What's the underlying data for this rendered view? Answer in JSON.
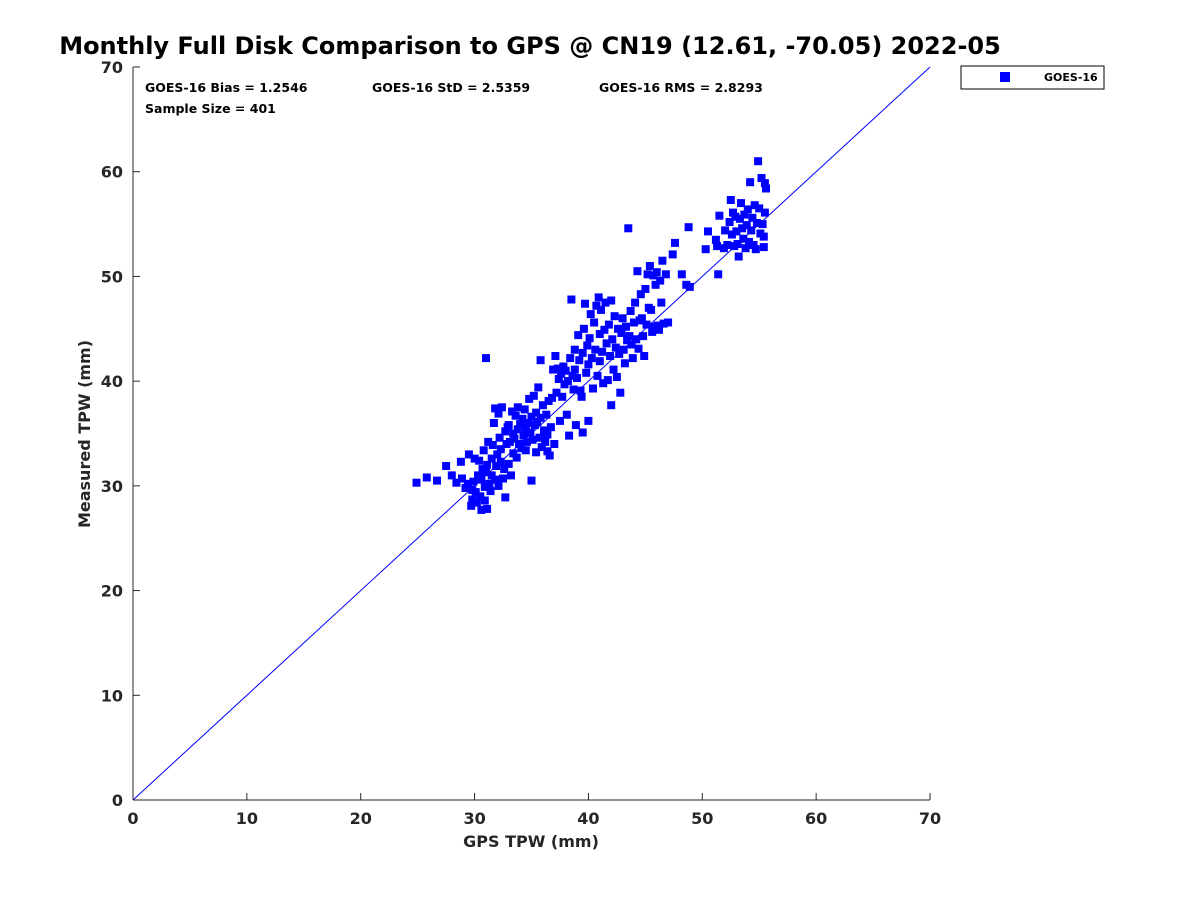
{
  "colors": {
    "series": "#0000ff",
    "line": "#0000ff",
    "axis": "#262626"
  },
  "stats": {
    "bias": "GOES-16 Bias = 1.2546",
    "std": "GOES-16 StD = 2.5359",
    "rms": "GOES-16 RMS = 2.8293",
    "sample": "Sample Size = 401"
  },
  "chart_data": {
    "type": "scatter",
    "title": "Monthly Full Disk Comparison to GPS @ CN19 (12.61, -70.05) 2022-05",
    "xlabel": "GPS TPW (mm)",
    "ylabel": "Measured TPW (mm)",
    "xlim": [
      0,
      70
    ],
    "ylim": [
      0,
      70
    ],
    "xticks": [
      "0",
      "10",
      "20",
      "30",
      "40",
      "50",
      "60",
      "70"
    ],
    "yticks": [
      "0",
      "10",
      "20",
      "30",
      "40",
      "50",
      "60",
      "70"
    ],
    "grid": false,
    "legend": "top-right outside",
    "reference_line": {
      "x": [
        0,
        70
      ],
      "y": [
        0,
        70
      ]
    },
    "series": [
      {
        "name": "GOES-16",
        "marker": "square",
        "points": [
          [
            24.9,
            30.3
          ],
          [
            25.8,
            30.8
          ],
          [
            26.7,
            30.5
          ],
          [
            27.5,
            31.9
          ],
          [
            28.0,
            31.0
          ],
          [
            28.4,
            30.3
          ],
          [
            28.8,
            32.3
          ],
          [
            28.9,
            30.7
          ],
          [
            29.2,
            29.8
          ],
          [
            29.4,
            30.2
          ],
          [
            29.5,
            33.0
          ],
          [
            29.7,
            28.1
          ],
          [
            29.8,
            28.7
          ],
          [
            29.8,
            29.6
          ],
          [
            29.9,
            30.4
          ],
          [
            30.0,
            32.6
          ],
          [
            30.1,
            29.4
          ],
          [
            30.2,
            28.4
          ],
          [
            30.3,
            31.0
          ],
          [
            30.4,
            32.4
          ],
          [
            30.5,
            29.0
          ],
          [
            30.6,
            27.7
          ],
          [
            30.6,
            30.6
          ],
          [
            30.7,
            31.6
          ],
          [
            30.8,
            33.4
          ],
          [
            30.9,
            28.6
          ],
          [
            30.9,
            29.9
          ],
          [
            31.0,
            31.3
          ],
          [
            31.0,
            42.2
          ],
          [
            31.1,
            32.0
          ],
          [
            31.1,
            27.8
          ],
          [
            31.2,
            34.2
          ],
          [
            31.3,
            30.2
          ],
          [
            31.4,
            29.5
          ],
          [
            31.5,
            32.6
          ],
          [
            31.5,
            31.0
          ],
          [
            31.6,
            33.9
          ],
          [
            31.7,
            36.0
          ],
          [
            31.8,
            30.6
          ],
          [
            31.8,
            37.4
          ],
          [
            31.9,
            31.9
          ],
          [
            32.0,
            33.0
          ],
          [
            32.1,
            36.9
          ],
          [
            32.1,
            30.0
          ],
          [
            32.2,
            34.6
          ],
          [
            32.3,
            32.3
          ],
          [
            32.3,
            33.5
          ],
          [
            32.4,
            37.5
          ],
          [
            32.5,
            30.7
          ],
          [
            32.6,
            31.6
          ],
          [
            32.7,
            35.2
          ],
          [
            32.7,
            28.9
          ],
          [
            32.8,
            34.0
          ],
          [
            32.9,
            35.6
          ],
          [
            33.0,
            32.1
          ],
          [
            33.0,
            35.8
          ],
          [
            33.1,
            34.2
          ],
          [
            33.2,
            31.0
          ],
          [
            33.3,
            37.1
          ],
          [
            33.4,
            33.1
          ],
          [
            33.4,
            35.0
          ],
          [
            33.5,
            34.5
          ],
          [
            33.6,
            36.7
          ],
          [
            33.7,
            32.7
          ],
          [
            33.8,
            35.4
          ],
          [
            33.8,
            37.5
          ],
          [
            33.9,
            34.0
          ],
          [
            34.0,
            35.9
          ],
          [
            34.1,
            33.6
          ],
          [
            34.2,
            36.4
          ],
          [
            34.3,
            34.8
          ],
          [
            34.4,
            37.3
          ],
          [
            34.5,
            35.5
          ],
          [
            34.5,
            33.4
          ],
          [
            34.6,
            34.2
          ],
          [
            34.7,
            36.0
          ],
          [
            34.8,
            38.3
          ],
          [
            34.9,
            35.1
          ],
          [
            35.0,
            30.5
          ],
          [
            35.0,
            36.6
          ],
          [
            35.1,
            34.4
          ],
          [
            35.2,
            38.6
          ],
          [
            35.3,
            35.8
          ],
          [
            35.4,
            33.2
          ],
          [
            35.4,
            37.0
          ],
          [
            35.5,
            36.1
          ],
          [
            35.6,
            39.4
          ],
          [
            35.7,
            34.6
          ],
          [
            35.8,
            42.0
          ],
          [
            35.8,
            36.5
          ],
          [
            35.9,
            33.7
          ],
          [
            36.0,
            37.7
          ],
          [
            36.1,
            35.3
          ],
          [
            36.2,
            34.2
          ],
          [
            36.3,
            36.8
          ],
          [
            36.4,
            33.3
          ],
          [
            36.4,
            34.9
          ],
          [
            36.5,
            38.1
          ],
          [
            36.6,
            32.9
          ],
          [
            36.7,
            35.6
          ],
          [
            36.8,
            38.4
          ],
          [
            36.9,
            41.1
          ],
          [
            37.0,
            34.0
          ],
          [
            37.1,
            42.4
          ],
          [
            37.2,
            38.9
          ],
          [
            37.3,
            41.2
          ],
          [
            37.4,
            40.2
          ],
          [
            37.5,
            36.2
          ],
          [
            37.6,
            40.7
          ],
          [
            37.7,
            38.5
          ],
          [
            37.8,
            41.4
          ],
          [
            37.9,
            39.7
          ],
          [
            38.0,
            41.0
          ],
          [
            38.1,
            36.8
          ],
          [
            38.2,
            40.0
          ],
          [
            38.3,
            34.8
          ],
          [
            38.4,
            42.2
          ],
          [
            38.5,
            47.8
          ],
          [
            38.6,
            40.5
          ],
          [
            38.7,
            39.2
          ],
          [
            38.8,
            43.0
          ],
          [
            38.8,
            41.1
          ],
          [
            38.9,
            35.8
          ],
          [
            39.0,
            40.3
          ],
          [
            39.1,
            44.4
          ],
          [
            39.2,
            42.0
          ],
          [
            39.3,
            39.1
          ],
          [
            39.4,
            38.5
          ],
          [
            39.5,
            42.7
          ],
          [
            39.5,
            35.1
          ],
          [
            39.6,
            45.0
          ],
          [
            39.7,
            47.4
          ],
          [
            39.8,
            40.8
          ],
          [
            39.9,
            43.4
          ],
          [
            40.0,
            41.6
          ],
          [
            40.0,
            36.2
          ],
          [
            40.1,
            44.1
          ],
          [
            40.2,
            46.4
          ],
          [
            40.3,
            42.2
          ],
          [
            40.4,
            39.3
          ],
          [
            40.5,
            45.6
          ],
          [
            40.6,
            43.0
          ],
          [
            40.7,
            47.2
          ],
          [
            40.8,
            40.5
          ],
          [
            40.9,
            48.0
          ],
          [
            41.0,
            44.5
          ],
          [
            41.0,
            41.9
          ],
          [
            41.1,
            46.8
          ],
          [
            41.2,
            42.8
          ],
          [
            41.3,
            39.8
          ],
          [
            41.4,
            44.9
          ],
          [
            41.5,
            47.5
          ],
          [
            41.6,
            43.6
          ],
          [
            41.7,
            40.1
          ],
          [
            41.8,
            45.4
          ],
          [
            41.9,
            42.4
          ],
          [
            42.0,
            47.7
          ],
          [
            42.0,
            37.7
          ],
          [
            42.1,
            44.0
          ],
          [
            42.2,
            41.1
          ],
          [
            42.3,
            46.2
          ],
          [
            42.4,
            43.2
          ],
          [
            42.5,
            40.4
          ],
          [
            42.6,
            45.0
          ],
          [
            42.7,
            42.6
          ],
          [
            42.8,
            38.9
          ],
          [
            42.9,
            44.6
          ],
          [
            43.0,
            46.0
          ],
          [
            43.1,
            43.0
          ],
          [
            43.2,
            41.7
          ],
          [
            43.3,
            45.2
          ],
          [
            43.4,
            43.9
          ],
          [
            43.5,
            54.6
          ],
          [
            43.6,
            44.3
          ],
          [
            43.7,
            46.7
          ],
          [
            43.8,
            43.5
          ],
          [
            43.9,
            42.2
          ],
          [
            44.0,
            45.6
          ],
          [
            44.1,
            47.5
          ],
          [
            44.2,
            44.0
          ],
          [
            44.3,
            50.5
          ],
          [
            44.4,
            43.1
          ],
          [
            44.5,
            45.8
          ],
          [
            44.6,
            48.3
          ],
          [
            44.7,
            46.0
          ],
          [
            44.8,
            44.3
          ],
          [
            44.9,
            42.4
          ],
          [
            45.0,
            48.8
          ],
          [
            45.1,
            45.4
          ],
          [
            45.2,
            50.2
          ],
          [
            45.3,
            47.0
          ],
          [
            45.4,
            51.0
          ],
          [
            45.5,
            46.8
          ],
          [
            45.6,
            44.7
          ],
          [
            45.7,
            50.1
          ],
          [
            45.8,
            45.2
          ],
          [
            45.9,
            49.2
          ],
          [
            46.0,
            50.4
          ],
          [
            46.1,
            45.3
          ],
          [
            46.2,
            44.9
          ],
          [
            46.3,
            49.6
          ],
          [
            46.4,
            47.5
          ],
          [
            46.5,
            51.5
          ],
          [
            46.6,
            45.5
          ],
          [
            46.8,
            50.2
          ],
          [
            47.0,
            45.6
          ],
          [
            47.4,
            52.1
          ],
          [
            47.6,
            53.2
          ],
          [
            48.2,
            50.2
          ],
          [
            48.6,
            49.2
          ],
          [
            48.8,
            54.7
          ],
          [
            48.9,
            49.0
          ],
          [
            50.3,
            52.6
          ],
          [
            50.5,
            54.3
          ],
          [
            51.2,
            53.5
          ],
          [
            51.3,
            52.9
          ],
          [
            51.4,
            50.2
          ],
          [
            51.5,
            55.8
          ],
          [
            51.9,
            52.7
          ],
          [
            52.0,
            54.4
          ],
          [
            52.2,
            53.0
          ],
          [
            52.4,
            55.2
          ],
          [
            52.5,
            57.3
          ],
          [
            52.6,
            54.0
          ],
          [
            52.7,
            56.1
          ],
          [
            52.8,
            52.9
          ],
          [
            52.9,
            55.7
          ],
          [
            53.0,
            54.3
          ],
          [
            53.1,
            53.1
          ],
          [
            53.2,
            51.9
          ],
          [
            53.3,
            55.5
          ],
          [
            53.4,
            57.0
          ],
          [
            53.5,
            54.6
          ],
          [
            53.6,
            53.6
          ],
          [
            53.7,
            55.9
          ],
          [
            53.8,
            52.7
          ],
          [
            53.9,
            54.9
          ],
          [
            54.0,
            56.4
          ],
          [
            54.1,
            53.3
          ],
          [
            54.2,
            59.0
          ],
          [
            54.3,
            54.4
          ],
          [
            54.4,
            55.6
          ],
          [
            54.5,
            53.0
          ],
          [
            54.6,
            56.8
          ],
          [
            54.7,
            52.6
          ],
          [
            54.8,
            55.1
          ],
          [
            54.9,
            61.0
          ],
          [
            55.0,
            56.5
          ],
          [
            55.1,
            54.1
          ],
          [
            55.2,
            59.4
          ],
          [
            55.3,
            55.0
          ],
          [
            55.4,
            52.8
          ],
          [
            55.5,
            58.9
          ],
          [
            55.5,
            56.1
          ],
          [
            55.6,
            58.4
          ],
          [
            55.4,
            53.8
          ]
        ]
      }
    ]
  }
}
